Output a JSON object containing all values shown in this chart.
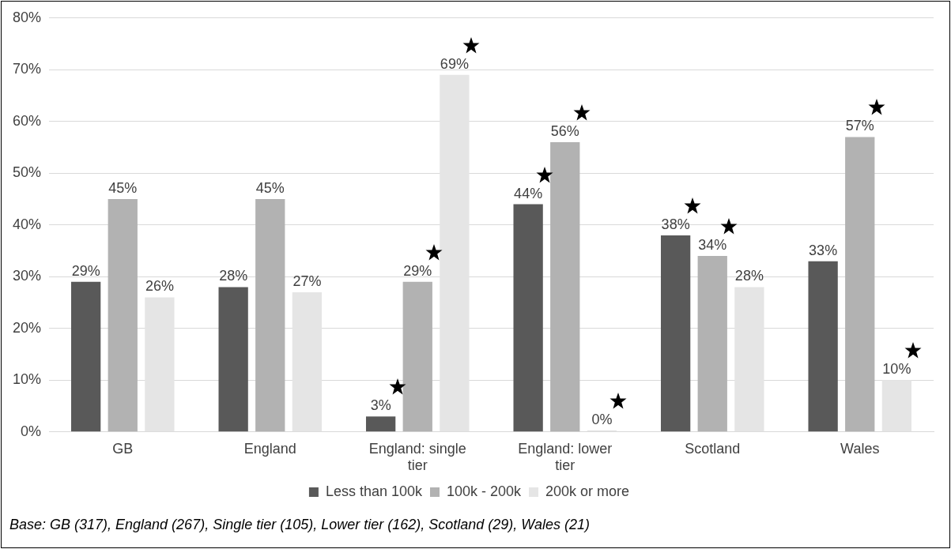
{
  "chart_data": {
    "type": "bar",
    "categories": [
      "GB",
      "England",
      "England: single tier",
      "England: lower tier",
      "Scotland",
      "Wales"
    ],
    "series": [
      {
        "name": "Less than 100k",
        "color": "#595959",
        "values": [
          29,
          28,
          3,
          44,
          38,
          33
        ],
        "value_labels": [
          "29%",
          "28%",
          "3%",
          "44%",
          "38%",
          "33%"
        ]
      },
      {
        "name": "100k - 200k",
        "color": "#b2b2b2",
        "values": [
          45,
          45,
          29,
          56,
          34,
          57
        ],
        "value_labels": [
          "45%",
          "45%",
          "29%",
          "56%",
          "34%",
          "57%"
        ]
      },
      {
        "name": "200k or more",
        "color": "#e5e5e5",
        "values": [
          26,
          27,
          69,
          0,
          28,
          10
        ],
        "value_labels": [
          "26%",
          "27%",
          "69%",
          "0%",
          "28%",
          "10%"
        ]
      }
    ],
    "ylim": [
      0,
      80
    ],
    "yticks": [
      {
        "value": 0,
        "label": "0%"
      },
      {
        "value": 10,
        "label": "10%"
      },
      {
        "value": 20,
        "label": "20%"
      },
      {
        "value": 30,
        "label": "30%"
      },
      {
        "value": 40,
        "label": "40%"
      },
      {
        "value": 50,
        "label": "50%"
      },
      {
        "value": 60,
        "label": "60%"
      },
      {
        "value": 70,
        "label": "70%"
      },
      {
        "value": 80,
        "label": "80%"
      }
    ],
    "grid": "y",
    "legend": "bottom",
    "annotations": [
      "Base: GB (317), England (267), Single tier (105), Lower tier (162), Scotland (29), Wales (21)"
    ]
  }
}
